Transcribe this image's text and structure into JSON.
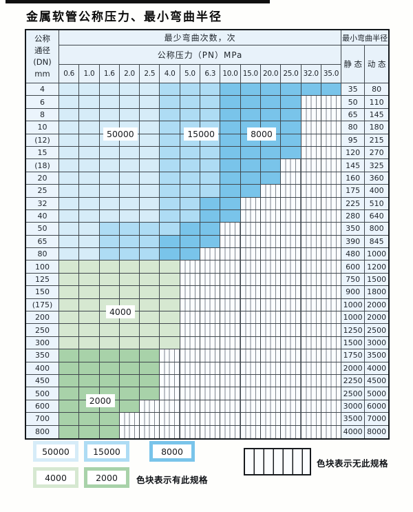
{
  "page_title": "金属软管公称压力、最小弯曲半径",
  "table": {
    "dn_header_lines": [
      "公称",
      "通径",
      "(DN)",
      "mm"
    ],
    "cycles_header": "最少弯曲次数，次",
    "radius_header": "最小弯曲半径",
    "pressure_header": "公称压力（PN）MPa",
    "pressures": [
      "0.6",
      "1.0",
      "1.6",
      "2.0",
      "2.5",
      "4.0",
      "5.0",
      "6.3",
      "10.0",
      "15.0",
      "20.0",
      "25.0",
      "32.0",
      "35.0"
    ],
    "static_header": "静 态",
    "dynamic_header": "动 态",
    "overlays": [
      {
        "text": "50000",
        "c0": 2,
        "c1": 3,
        "r": 3
      },
      {
        "text": "15000",
        "c0": 6,
        "c1": 7,
        "r": 3
      },
      {
        "text": "8000",
        "c0": 9,
        "c1": 10,
        "r": 3
      },
      {
        "text": "4000",
        "c0": 2,
        "c1": 3,
        "r": 17
      },
      {
        "text": "2000",
        "c0": 1,
        "c1": 2,
        "r": 24
      }
    ],
    "rows": [
      {
        "dn": "4",
        "cells": [
          "b1",
          "b1",
          "b1",
          "b1",
          "b1",
          "b2",
          "b2",
          "b2",
          "b3",
          "b3",
          "b3",
          "b3",
          "b3",
          "b3"
        ],
        "static": "35",
        "dynamic": "80"
      },
      {
        "dn": "6",
        "cells": [
          "b1",
          "b1",
          "b1",
          "b1",
          "b1",
          "b2",
          "b2",
          "b2",
          "b3",
          "b3",
          "b3",
          "b3",
          "s",
          "s"
        ],
        "static": "50",
        "dynamic": "110"
      },
      {
        "dn": "8",
        "cells": [
          "b1",
          "b1",
          "b1",
          "b1",
          "b1",
          "b2",
          "b2",
          "b2",
          "b3",
          "b3",
          "b3",
          "b3",
          "s",
          "s"
        ],
        "static": "65",
        "dynamic": "145"
      },
      {
        "dn": "10",
        "cells": [
          "b1",
          "b1",
          "b1",
          "b1",
          "b1",
          "b2",
          "b2",
          "b2",
          "b3",
          "b3",
          "b3",
          "b3",
          "s",
          "s"
        ],
        "static": "80",
        "dynamic": "180"
      },
      {
        "dn": "(12)",
        "cells": [
          "b1",
          "b1",
          "b1",
          "b1",
          "b1",
          "b2",
          "b2",
          "b2",
          "b3",
          "b3",
          "b3",
          "b3",
          "s",
          "s"
        ],
        "static": "95",
        "dynamic": "215"
      },
      {
        "dn": "15",
        "cells": [
          "b1",
          "b1",
          "b1",
          "b1",
          "b1",
          "b2",
          "b2",
          "b2",
          "b3",
          "b3",
          "b3",
          "b3",
          "s",
          "s"
        ],
        "static": "120",
        "dynamic": "270"
      },
      {
        "dn": "(18)",
        "cells": [
          "b1",
          "b1",
          "b1",
          "b1",
          "b1",
          "b2",
          "b2",
          "b2",
          "b3",
          "b3",
          "b3",
          "s",
          "s",
          "s"
        ],
        "static": "145",
        "dynamic": "325"
      },
      {
        "dn": "20",
        "cells": [
          "b1",
          "b1",
          "b1",
          "b1",
          "b1",
          "b2",
          "b2",
          "b2",
          "b3",
          "b3",
          "b3",
          "s",
          "s",
          "s"
        ],
        "static": "160",
        "dynamic": "360"
      },
      {
        "dn": "25",
        "cells": [
          "b1",
          "b1",
          "b1",
          "b1",
          "b1",
          "b2",
          "b2",
          "b2",
          "b3",
          "b3",
          "s",
          "s",
          "s",
          "s"
        ],
        "static": "175",
        "dynamic": "400"
      },
      {
        "dn": "32",
        "cells": [
          "b1",
          "b1",
          "b1",
          "b1",
          "b1",
          "b2",
          "b2",
          "b3",
          "b3",
          "s",
          "s",
          "s",
          "s",
          "s"
        ],
        "static": "225",
        "dynamic": "510"
      },
      {
        "dn": "40",
        "cells": [
          "b1",
          "b1",
          "b1",
          "b1",
          "b1",
          "b2",
          "b2",
          "b3",
          "b3",
          "s",
          "s",
          "s",
          "s",
          "s"
        ],
        "static": "280",
        "dynamic": "640"
      },
      {
        "dn": "50",
        "cells": [
          "b1",
          "b1",
          "b2",
          "b2",
          "b2",
          "b2",
          "b3",
          "b3",
          "s",
          "s",
          "s",
          "s",
          "s",
          "s"
        ],
        "static": "350",
        "dynamic": "800"
      },
      {
        "dn": "65",
        "cells": [
          "b1",
          "b1",
          "b2",
          "b2",
          "b2",
          "b3",
          "b3",
          "b3",
          "s",
          "s",
          "s",
          "s",
          "s",
          "s"
        ],
        "static": "390",
        "dynamic": "845"
      },
      {
        "dn": "80",
        "cells": [
          "b1",
          "b1",
          "b2",
          "b2",
          "b2",
          "b3",
          "b3",
          "s",
          "s",
          "s",
          "s",
          "s",
          "s",
          "s"
        ],
        "static": "480",
        "dynamic": "1000"
      },
      {
        "dn": "100",
        "cells": [
          "g1",
          "g1",
          "g1",
          "g1",
          "g1",
          "g1",
          "s",
          "s",
          "s",
          "s",
          "s",
          "s",
          "s",
          "s"
        ],
        "static": "600",
        "dynamic": "1200"
      },
      {
        "dn": "125",
        "cells": [
          "g1",
          "g1",
          "g1",
          "g1",
          "g1",
          "g1",
          "s",
          "s",
          "s",
          "s",
          "s",
          "s",
          "s",
          "s"
        ],
        "static": "750",
        "dynamic": "1500"
      },
      {
        "dn": "150",
        "cells": [
          "g1",
          "g1",
          "g1",
          "g1",
          "g1",
          "g1",
          "s",
          "s",
          "s",
          "s",
          "s",
          "s",
          "s",
          "s"
        ],
        "static": "900",
        "dynamic": "1800"
      },
      {
        "dn": "(175)",
        "cells": [
          "g1",
          "g1",
          "g1",
          "g1",
          "g1",
          "g1",
          "s",
          "s",
          "s",
          "s",
          "s",
          "s",
          "s",
          "s"
        ],
        "static": "1000",
        "dynamic": "2000"
      },
      {
        "dn": "200",
        "cells": [
          "g1",
          "g1",
          "g1",
          "g1",
          "g1",
          "g1",
          "s",
          "s",
          "s",
          "s",
          "s",
          "s",
          "s",
          "s"
        ],
        "static": "1000",
        "dynamic": "2000"
      },
      {
        "dn": "250",
        "cells": [
          "g1",
          "g1",
          "g1",
          "g1",
          "g1",
          "g1",
          "s",
          "s",
          "s",
          "s",
          "s",
          "s",
          "s",
          "s"
        ],
        "static": "1250",
        "dynamic": "2500"
      },
      {
        "dn": "300",
        "cells": [
          "g1",
          "g1",
          "g1",
          "g1",
          "g1",
          "g1",
          "s",
          "s",
          "s",
          "s",
          "s",
          "s",
          "s",
          "s"
        ],
        "static": "1500",
        "dynamic": "3000"
      },
      {
        "dn": "350",
        "cells": [
          "g2",
          "g2",
          "g2",
          "g2",
          "g2",
          "s",
          "s",
          "s",
          "s",
          "s",
          "s",
          "s",
          "s",
          "s"
        ],
        "static": "1750",
        "dynamic": "3500"
      },
      {
        "dn": "400",
        "cells": [
          "g2",
          "g2",
          "g2",
          "g2",
          "g2",
          "s",
          "s",
          "s",
          "s",
          "s",
          "s",
          "s",
          "s",
          "s"
        ],
        "static": "2000",
        "dynamic": "4000"
      },
      {
        "dn": "450",
        "cells": [
          "g2",
          "g2",
          "g2",
          "g2",
          "g2",
          "s",
          "s",
          "s",
          "s",
          "s",
          "s",
          "s",
          "s",
          "s"
        ],
        "static": "2250",
        "dynamic": "4500"
      },
      {
        "dn": "500",
        "cells": [
          "g2",
          "g2",
          "g2",
          "g2",
          "g2",
          "s",
          "s",
          "s",
          "s",
          "s",
          "s",
          "s",
          "s",
          "s"
        ],
        "static": "2500",
        "dynamic": "5000"
      },
      {
        "dn": "600",
        "cells": [
          "g2",
          "g2",
          "g2",
          "g2",
          "s",
          "s",
          "s",
          "s",
          "s",
          "s",
          "s",
          "s",
          "s",
          "s"
        ],
        "static": "3000",
        "dynamic": "6000"
      },
      {
        "dn": "700",
        "cells": [
          "g2",
          "g2",
          "g2",
          "s",
          "s",
          "s",
          "s",
          "s",
          "s",
          "s",
          "s",
          "s",
          "s",
          "s"
        ],
        "static": "3500",
        "dynamic": "7000"
      },
      {
        "dn": "800",
        "cells": [
          "g2",
          "g2",
          "g2",
          "s",
          "s",
          "s",
          "s",
          "s",
          "s",
          "s",
          "s",
          "s",
          "s",
          "s"
        ],
        "static": "4000",
        "dynamic": "8000"
      }
    ]
  },
  "legend": {
    "items": [
      {
        "value": "50000",
        "code": "b1"
      },
      {
        "value": "15000",
        "code": "b2"
      },
      {
        "value": "8000",
        "code": "b3"
      },
      {
        "value": "4000",
        "code": "g1"
      },
      {
        "value": "2000",
        "code": "g2"
      }
    ],
    "has_spec_text": "色块表示有此规格",
    "no_spec_text": "色块表示无此规格"
  },
  "colors": {
    "cycles_50000": "#d6ecf8",
    "cycles_15000": "#aedcf4",
    "cycles_8000": "#79c4ea",
    "cycles_4000": "#d6e8d1",
    "cycles_2000": "#a8d2a9",
    "header_bg": "#e8f2fa",
    "label_bg": "#ebf4fc",
    "grid": "#3f464c"
  }
}
